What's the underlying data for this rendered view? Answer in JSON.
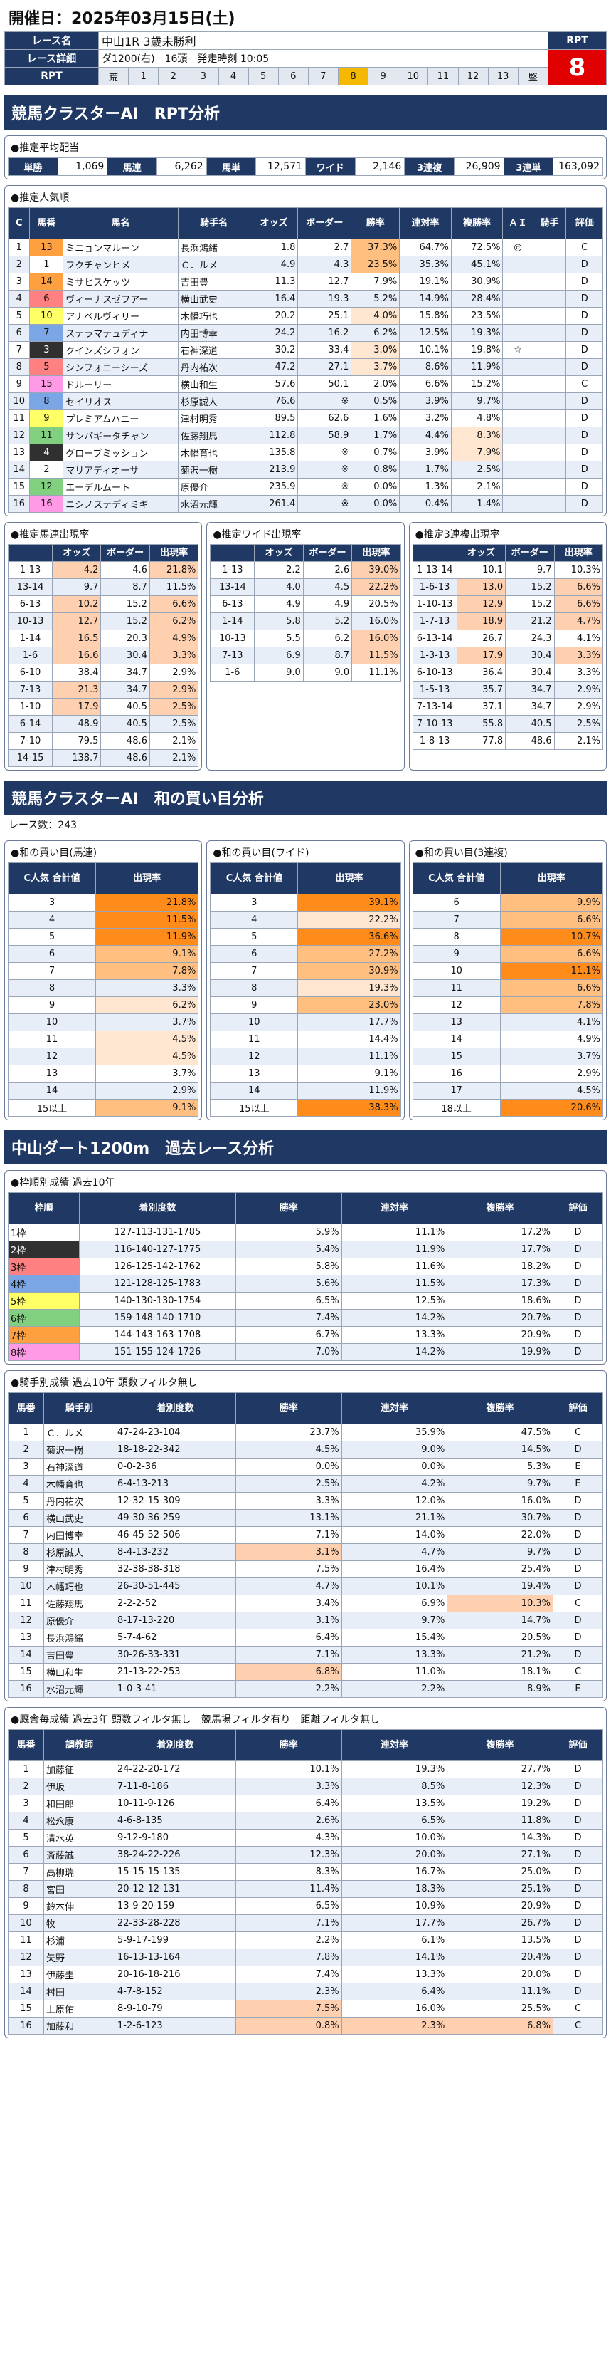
{
  "date_line": "開催日：2025年03月15日(土)",
  "race_info": {
    "race_name_label": "レース名",
    "race_name": "中山1R 3歳未勝利",
    "detail_label": "レース詳細",
    "detail": "ダ1200(右)　16頭　発走時刻 10:05",
    "rpt_label": "RPT",
    "rpt_head": "RPT",
    "rpt_value": "8",
    "scale": [
      "荒",
      "1",
      "2",
      "3",
      "4",
      "5",
      "6",
      "7",
      "8",
      "9",
      "10",
      "11",
      "12",
      "13",
      "堅"
    ],
    "scale_highlight": "8"
  },
  "section1_title": "競馬クラスターAI　RPT分析",
  "payout": {
    "title": "●推定平均配当",
    "items": [
      {
        "k": "単勝",
        "v": "1,069"
      },
      {
        "k": "馬連",
        "v": "6,262"
      },
      {
        "k": "馬単",
        "v": "12,571"
      },
      {
        "k": "ワイド",
        "v": "2,146"
      },
      {
        "k": "3連複",
        "v": "26,909"
      },
      {
        "k": "3連単",
        "v": "163,092"
      }
    ]
  },
  "popularity": {
    "title": "●推定人気順",
    "headers": [
      "C",
      "馬番",
      "馬名",
      "騎手名",
      "オッズ",
      "ボーダー",
      "勝率",
      "連対率",
      "複勝率",
      "ＡＩ",
      "騎手",
      "評価"
    ],
    "rows": [
      [
        "1",
        "13",
        "ミニョンマルーン",
        "長浜鴻緒",
        "1.8",
        "2.7",
        "37.3%",
        "64.7%",
        "72.5%",
        "◎",
        "",
        "C"
      ],
      [
        "2",
        "1",
        "フクチャンヒメ",
        "Ｃ．ルメ",
        "4.9",
        "4.3",
        "23.5%",
        "35.3%",
        "45.1%",
        "",
        "",
        "D"
      ],
      [
        "3",
        "14",
        "ミサヒスケッツ",
        "吉田豊",
        "11.3",
        "12.7",
        "7.9%",
        "19.1%",
        "30.9%",
        "",
        "",
        "D"
      ],
      [
        "4",
        "6",
        "ヴィーナスゼフアー",
        "横山武史",
        "16.4",
        "19.3",
        "5.2%",
        "14.9%",
        "28.4%",
        "",
        "",
        "D"
      ],
      [
        "5",
        "10",
        "アナベルヴィリー",
        "木幡巧也",
        "20.2",
        "25.1",
        "4.0%",
        "15.8%",
        "23.5%",
        "",
        "",
        "D"
      ],
      [
        "6",
        "7",
        "ステラマテュディナ",
        "内田博幸",
        "24.2",
        "16.2",
        "6.2%",
        "12.5%",
        "19.3%",
        "",
        "",
        "D"
      ],
      [
        "7",
        "3",
        "クインズシフォン",
        "石神深道",
        "30.2",
        "33.4",
        "3.0%",
        "10.1%",
        "19.8%",
        "☆",
        "",
        "D"
      ],
      [
        "8",
        "5",
        "シンフォニーシーズ",
        "丹内祐次",
        "47.2",
        "27.1",
        "3.7%",
        "8.6%",
        "11.9%",
        "",
        "",
        "D"
      ],
      [
        "9",
        "15",
        "ドルーリー",
        "横山和生",
        "57.6",
        "50.1",
        "2.0%",
        "6.6%",
        "15.2%",
        "",
        "",
        "C"
      ],
      [
        "10",
        "8",
        "セイリオス",
        "杉原誠人",
        "76.6",
        "※",
        "0.5%",
        "3.9%",
        "9.7%",
        "",
        "",
        "D"
      ],
      [
        "11",
        "9",
        "プレミアムハニー",
        "津村明秀",
        "89.5",
        "62.6",
        "1.6%",
        "3.2%",
        "4.8%",
        "",
        "",
        "D"
      ],
      [
        "12",
        "11",
        "サンバギータチャン",
        "佐藤翔馬",
        "112.8",
        "58.9",
        "1.7%",
        "4.4%",
        "8.3%",
        "",
        "",
        "D"
      ],
      [
        "13",
        "4",
        "グローブミッション",
        "木幡育也",
        "135.8",
        "※",
        "0.7%",
        "3.9%",
        "7.9%",
        "",
        "",
        "D"
      ],
      [
        "14",
        "2",
        "マリアディオーサ",
        "菊沢一樹",
        "213.9",
        "※",
        "0.8%",
        "1.7%",
        "2.5%",
        "",
        "",
        "D"
      ],
      [
        "15",
        "12",
        "エーデルムート",
        "原優介",
        "235.9",
        "※",
        "0.0%",
        "1.3%",
        "2.1%",
        "",
        "",
        "D"
      ],
      [
        "16",
        "16",
        "ニシノステディミキ",
        "水沼元輝",
        "261.4",
        "※",
        "0.0%",
        "0.4%",
        "1.4%",
        "",
        "",
        "D"
      ]
    ]
  },
  "umaren": {
    "title": "●推定馬連出現率",
    "headers": [
      "",
      "オッズ",
      "ボーダー",
      "出現率"
    ],
    "rows": [
      [
        "1-13",
        "4.2",
        "4.6",
        "21.8%"
      ],
      [
        "13-14",
        "9.7",
        "8.7",
        "11.5%"
      ],
      [
        "6-13",
        "10.2",
        "15.2",
        "6.6%"
      ],
      [
        "10-13",
        "12.7",
        "15.2",
        "6.2%"
      ],
      [
        "1-14",
        "16.5",
        "20.3",
        "4.9%"
      ],
      [
        "1-6",
        "16.6",
        "30.4",
        "3.3%"
      ],
      [
        "6-10",
        "38.4",
        "34.7",
        "2.9%"
      ],
      [
        "7-13",
        "21.3",
        "34.7",
        "2.9%"
      ],
      [
        "1-10",
        "17.9",
        "40.5",
        "2.5%"
      ],
      [
        "6-14",
        "48.9",
        "40.5",
        "2.5%"
      ],
      [
        "7-10",
        "79.5",
        "48.6",
        "2.1%"
      ],
      [
        "14-15",
        "138.7",
        "48.6",
        "2.1%"
      ]
    ]
  },
  "wide": {
    "title": "●推定ワイド出現率",
    "headers": [
      "",
      "オッズ",
      "ボーダー",
      "出現率"
    ],
    "rows": [
      [
        "1-13",
        "2.2",
        "2.6",
        "39.0%"
      ],
      [
        "13-14",
        "4.0",
        "4.5",
        "22.2%"
      ],
      [
        "6-13",
        "4.9",
        "4.9",
        "20.5%"
      ],
      [
        "1-14",
        "5.8",
        "5.2",
        "16.0%"
      ],
      [
        "10-13",
        "5.5",
        "6.2",
        "16.0%"
      ],
      [
        "7-13",
        "6.9",
        "8.7",
        "11.5%"
      ],
      [
        "1-6",
        "9.0",
        "9.0",
        "11.1%"
      ]
    ]
  },
  "sanrenpuku": {
    "title": "●推定3連複出現率",
    "headers": [
      "",
      "オッズ",
      "ボーダー",
      "出現率"
    ],
    "rows": [
      [
        "1-13-14",
        "10.1",
        "9.7",
        "10.3%"
      ],
      [
        "1-6-13",
        "13.0",
        "15.2",
        "6.6%"
      ],
      [
        "1-10-13",
        "12.9",
        "15.2",
        "6.6%"
      ],
      [
        "1-7-13",
        "18.9",
        "21.2",
        "4.7%"
      ],
      [
        "6-13-14",
        "26.7",
        "24.3",
        "4.1%"
      ],
      [
        "1-3-13",
        "17.9",
        "30.4",
        "3.3%"
      ],
      [
        "6-10-13",
        "36.4",
        "30.4",
        "3.3%"
      ],
      [
        "1-5-13",
        "35.7",
        "34.7",
        "2.9%"
      ],
      [
        "7-13-14",
        "37.1",
        "34.7",
        "2.9%"
      ],
      [
        "7-10-13",
        "55.8",
        "40.5",
        "2.5%"
      ],
      [
        "1-8-13",
        "77.8",
        "48.6",
        "2.1%"
      ]
    ]
  },
  "section2_title": "競馬クラスターAI　和の買い目分析",
  "race_count": "レース数：243",
  "sum_umaren": {
    "title": "●和の買い目(馬連)",
    "headers": [
      "C人気\n合計値",
      "出現率"
    ],
    "rows": [
      [
        "3",
        "21.8%"
      ],
      [
        "4",
        "11.5%"
      ],
      [
        "5",
        "11.9%"
      ],
      [
        "6",
        "9.1%"
      ],
      [
        "7",
        "7.8%"
      ],
      [
        "8",
        "3.3%"
      ],
      [
        "9",
        "6.2%"
      ],
      [
        "10",
        "3.7%"
      ],
      [
        "11",
        "4.5%"
      ],
      [
        "12",
        "4.5%"
      ],
      [
        "13",
        "3.7%"
      ],
      [
        "14",
        "2.9%"
      ],
      [
        "15以上",
        "9.1%"
      ]
    ]
  },
  "sum_wide": {
    "title": "●和の買い目(ワイド)",
    "headers": [
      "C人気\n合計値",
      "出現率"
    ],
    "rows": [
      [
        "3",
        "39.1%"
      ],
      [
        "4",
        "22.2%"
      ],
      [
        "5",
        "36.6%"
      ],
      [
        "6",
        "27.2%"
      ],
      [
        "7",
        "30.9%"
      ],
      [
        "8",
        "19.3%"
      ],
      [
        "9",
        "23.0%"
      ],
      [
        "10",
        "17.7%"
      ],
      [
        "11",
        "14.4%"
      ],
      [
        "12",
        "11.1%"
      ],
      [
        "13",
        "9.1%"
      ],
      [
        "14",
        "11.9%"
      ],
      [
        "15以上",
        "38.3%"
      ]
    ]
  },
  "sum_sanren": {
    "title": "●和の買い目(3連複)",
    "headers": [
      "C人気\n合計値",
      "出現率"
    ],
    "rows": [
      [
        "6",
        "9.9%"
      ],
      [
        "7",
        "6.6%"
      ],
      [
        "8",
        "10.7%"
      ],
      [
        "9",
        "6.6%"
      ],
      [
        "10",
        "11.1%"
      ],
      [
        "11",
        "6.6%"
      ],
      [
        "12",
        "7.8%"
      ],
      [
        "13",
        "4.1%"
      ],
      [
        "14",
        "4.9%"
      ],
      [
        "15",
        "3.7%"
      ],
      [
        "16",
        "2.9%"
      ],
      [
        "17",
        "4.5%"
      ],
      [
        "18以上",
        "20.6%"
      ]
    ]
  },
  "section3_title": "中山ダート1200m　過去レース分析",
  "waku": {
    "title": "●枠順別成績 過去10年",
    "headers": [
      "枠順",
      "着別度数",
      "勝率",
      "連対率",
      "複勝率",
      "評価"
    ],
    "rows": [
      [
        "1枠",
        "127-113-131-1785",
        "5.9%",
        "11.1%",
        "17.2%",
        "D"
      ],
      [
        "2枠",
        "116-140-127-1775",
        "5.4%",
        "11.9%",
        "17.7%",
        "D"
      ],
      [
        "3枠",
        "126-125-142-1762",
        "5.8%",
        "11.6%",
        "18.2%",
        "D"
      ],
      [
        "4枠",
        "121-128-125-1783",
        "5.6%",
        "11.5%",
        "17.3%",
        "D"
      ],
      [
        "5枠",
        "140-130-130-1754",
        "6.5%",
        "12.5%",
        "18.6%",
        "D"
      ],
      [
        "6枠",
        "159-148-140-1710",
        "7.4%",
        "14.2%",
        "20.7%",
        "D"
      ],
      [
        "7枠",
        "144-143-163-1708",
        "6.7%",
        "13.3%",
        "20.9%",
        "D"
      ],
      [
        "8枠",
        "151-155-124-1726",
        "7.0%",
        "14.2%",
        "19.9%",
        "D"
      ]
    ]
  },
  "jockey": {
    "title": "●騎手別成績 過去10年 頭数フィルタ無し",
    "headers": [
      "馬番",
      "騎手別",
      "着別度数",
      "勝率",
      "連対率",
      "複勝率",
      "評価"
    ],
    "rows": [
      [
        "1",
        "Ｃ．ルメ",
        "47-24-23-104",
        "23.7%",
        "35.9%",
        "47.5%",
        "C"
      ],
      [
        "2",
        "菊沢一樹",
        "18-18-22-342",
        "4.5%",
        "9.0%",
        "14.5%",
        "D"
      ],
      [
        "3",
        "石神深道",
        "0-0-2-36",
        "0.0%",
        "0.0%",
        "5.3%",
        "E"
      ],
      [
        "4",
        "木幡育也",
        "6-4-13-213",
        "2.5%",
        "4.2%",
        "9.7%",
        "E"
      ],
      [
        "5",
        "丹内祐次",
        "12-32-15-309",
        "3.3%",
        "12.0%",
        "16.0%",
        "D"
      ],
      [
        "6",
        "横山武史",
        "49-30-36-259",
        "13.1%",
        "21.1%",
        "30.7%",
        "D"
      ],
      [
        "7",
        "内田博幸",
        "46-45-52-506",
        "7.1%",
        "14.0%",
        "22.0%",
        "D"
      ],
      [
        "8",
        "杉原誠人",
        "8-4-13-232",
        "3.1%",
        "4.7%",
        "9.7%",
        "D"
      ],
      [
        "9",
        "津村明秀",
        "32-38-38-318",
        "7.5%",
        "16.4%",
        "25.4%",
        "D"
      ],
      [
        "10",
        "木幡巧也",
        "26-30-51-445",
        "4.7%",
        "10.1%",
        "19.4%",
        "D"
      ],
      [
        "11",
        "佐藤翔馬",
        "2-2-2-52",
        "3.4%",
        "6.9%",
        "10.3%",
        "C"
      ],
      [
        "12",
        "原優介",
        "8-17-13-220",
        "3.1%",
        "9.7%",
        "14.7%",
        "D"
      ],
      [
        "13",
        "長浜鴻緒",
        "5-7-4-62",
        "6.4%",
        "15.4%",
        "20.5%",
        "D"
      ],
      [
        "14",
        "吉田豊",
        "30-26-33-331",
        "7.1%",
        "13.3%",
        "21.2%",
        "D"
      ],
      [
        "15",
        "横山和生",
        "21-13-22-253",
        "6.8%",
        "11.0%",
        "18.1%",
        "C"
      ],
      [
        "16",
        "水沼元輝",
        "1-0-3-41",
        "2.2%",
        "2.2%",
        "8.9%",
        "E"
      ]
    ]
  },
  "trainer": {
    "title": "●厩舎毎成績 過去3年 頭数フィルタ無し　競馬場フィルタ有り　距離フィルタ無し",
    "headers": [
      "馬番",
      "調教師",
      "着別度数",
      "勝率",
      "連対率",
      "複勝率",
      "評価"
    ],
    "rows": [
      [
        "1",
        "加藤征",
        "24-22-20-172",
        "10.1%",
        "19.3%",
        "27.7%",
        "D"
      ],
      [
        "2",
        "伊坂",
        "7-11-8-186",
        "3.3%",
        "8.5%",
        "12.3%",
        "D"
      ],
      [
        "3",
        "和田郎",
        "10-11-9-126",
        "6.4%",
        "13.5%",
        "19.2%",
        "D"
      ],
      [
        "4",
        "松永康",
        "4-6-8-135",
        "2.6%",
        "6.5%",
        "11.8%",
        "D"
      ],
      [
        "5",
        "清水英",
        "9-12-9-180",
        "4.3%",
        "10.0%",
        "14.3%",
        "D"
      ],
      [
        "6",
        "斎藤誠",
        "38-24-22-226",
        "12.3%",
        "20.0%",
        "27.1%",
        "D"
      ],
      [
        "7",
        "高柳瑞",
        "15-15-15-135",
        "8.3%",
        "16.7%",
        "25.0%",
        "D"
      ],
      [
        "8",
        "宮田",
        "20-12-12-131",
        "11.4%",
        "18.3%",
        "25.1%",
        "D"
      ],
      [
        "9",
        "鈴木伸",
        "13-9-20-159",
        "6.5%",
        "10.9%",
        "20.9%",
        "D"
      ],
      [
        "10",
        "牧",
        "22-33-28-228",
        "7.1%",
        "17.7%",
        "26.7%",
        "D"
      ],
      [
        "11",
        "杉浦",
        "5-9-17-199",
        "2.2%",
        "6.1%",
        "13.5%",
        "D"
      ],
      [
        "12",
        "矢野",
        "16-13-13-164",
        "7.8%",
        "14.1%",
        "20.4%",
        "D"
      ],
      [
        "13",
        "伊藤圭",
        "20-16-18-216",
        "7.4%",
        "13.3%",
        "20.0%",
        "D"
      ],
      [
        "14",
        "村田",
        "4-7-8-152",
        "2.3%",
        "6.4%",
        "11.1%",
        "D"
      ],
      [
        "15",
        "上原佑",
        "8-9-10-79",
        "7.5%",
        "16.0%",
        "25.5%",
        "C"
      ],
      [
        "16",
        "加藤和",
        "1-2-6-123",
        "0.8%",
        "2.3%",
        "6.8%",
        "C"
      ]
    ]
  },
  "colors": {
    "navy": "#1f3864",
    "red": "#e00000",
    "gold": "#f5b800",
    "orange": "#ff8c1a"
  }
}
